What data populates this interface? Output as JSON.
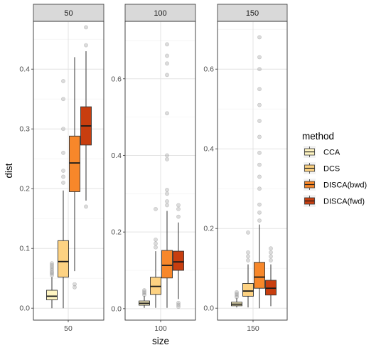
{
  "chart_data": {
    "type": "box",
    "xlabel": "size",
    "ylabel": "dist",
    "legend": {
      "title": "method",
      "position": "right",
      "entries": [
        {
          "name": "CCA",
          "color": "#FFF5C2"
        },
        {
          "name": "DCS",
          "color": "#FDD282"
        },
        {
          "name": "DISCA(bwd)",
          "color": "#F7872A"
        },
        {
          "name": "DISCA(fwd)",
          "color": "#C83E0F"
        }
      ]
    },
    "grid": true,
    "facets": [
      {
        "strip": "50",
        "x_tick": "50",
        "ylim": [
          -0.02,
          0.48
        ],
        "y_ticks": [
          0.0,
          0.1,
          0.2,
          0.3,
          0.4
        ],
        "y_tick_labels": [
          "0.0",
          "0.1",
          "0.2",
          "0.3",
          "0.4"
        ],
        "boxes": [
          {
            "method": "CCA",
            "whisker_low": 0.0,
            "q1": 0.014,
            "median": 0.02,
            "q3": 0.03,
            "whisker_high": 0.052,
            "outliers": [
              0.055,
              0.058,
              0.06,
              0.063,
              0.066,
              0.069,
              0.072,
              0.075
            ]
          },
          {
            "method": "DCS",
            "whisker_low": 0.0,
            "q1": 0.052,
            "median": 0.078,
            "q3": 0.113,
            "whisker_high": 0.197,
            "outliers": [
              0.21,
              0.22,
              0.23,
              0.26,
              0.3,
              0.35,
              0.38
            ]
          },
          {
            "method": "DISCA(bwd)",
            "whisker_low": 0.062,
            "q1": 0.195,
            "median": 0.243,
            "q3": 0.288,
            "whisker_high": 0.42,
            "outliers": [
              0.04,
              0.035
            ]
          },
          {
            "method": "DISCA(fwd)",
            "whisker_low": 0.18,
            "q1": 0.273,
            "median": 0.305,
            "q3": 0.337,
            "whisker_high": 0.43,
            "outliers": [
              0.17,
              0.44,
              0.47
            ]
          }
        ]
      },
      {
        "strip": "100",
        "x_tick": "100",
        "ylim": [
          -0.03,
          0.75
        ],
        "y_ticks": [
          0.0,
          0.2,
          0.4,
          0.6
        ],
        "y_tick_labels": [
          "0.0",
          "0.2",
          "0.4",
          "0.6"
        ],
        "boxes": [
          {
            "method": "CCA",
            "whisker_low": 0.002,
            "q1": 0.009,
            "median": 0.014,
            "q3": 0.02,
            "whisker_high": 0.033,
            "outliers": [
              0.036,
              0.04,
              0.044,
              0.048
            ]
          },
          {
            "method": "DCS",
            "whisker_low": 0.002,
            "q1": 0.037,
            "median": 0.058,
            "q3": 0.082,
            "whisker_high": 0.15,
            "outliers": [
              0.16,
              0.17,
              0.18,
              0.26
            ]
          },
          {
            "method": "DISCA(bwd)",
            "whisker_low": 0.002,
            "q1": 0.08,
            "median": 0.113,
            "q3": 0.152,
            "whisker_high": 0.255,
            "outliers": [
              0.27,
              0.28,
              0.3,
              0.31,
              0.39,
              0.4,
              0.51,
              0.61,
              0.64,
              0.66,
              0.69
            ]
          },
          {
            "method": "DISCA(fwd)",
            "whisker_low": 0.025,
            "q1": 0.1,
            "median": 0.122,
            "q3": 0.15,
            "whisker_high": 0.225,
            "outliers": [
              0.005,
              0.01,
              0.015,
              0.24,
              0.26,
              0.27
            ]
          }
        ]
      },
      {
        "strip": "150",
        "x_tick": "150",
        "ylim": [
          -0.03,
          0.72
        ],
        "y_ticks": [
          0.0,
          0.2,
          0.4,
          0.6
        ],
        "y_tick_labels": [
          "0.0",
          "0.2",
          "0.4",
          "0.6"
        ],
        "boxes": [
          {
            "method": "CCA",
            "whisker_low": 0.002,
            "q1": 0.006,
            "median": 0.01,
            "q3": 0.015,
            "whisker_high": 0.025,
            "outliers": [
              0.028,
              0.032,
              0.036,
              0.04
            ]
          },
          {
            "method": "DCS",
            "whisker_low": 0.002,
            "q1": 0.03,
            "median": 0.043,
            "q3": 0.062,
            "whisker_high": 0.11,
            "outliers": [
              0.12,
              0.13,
              0.14,
              0.19
            ]
          },
          {
            "method": "DISCA(bwd)",
            "whisker_low": 0.0,
            "q1": 0.05,
            "median": 0.078,
            "q3": 0.115,
            "whisker_high": 0.21,
            "outliers": [
              0.22,
              0.24,
              0.26,
              0.3,
              0.33,
              0.36,
              0.39,
              0.43,
              0.47,
              0.51,
              0.55,
              0.6,
              0.63,
              0.68
            ]
          },
          {
            "method": "DISCA(fwd)",
            "whisker_low": 0.005,
            "q1": 0.033,
            "median": 0.05,
            "q3": 0.07,
            "whisker_high": 0.11,
            "outliers": [
              0.12,
              0.13,
              0.14,
              0.15
            ]
          }
        ]
      }
    ]
  }
}
